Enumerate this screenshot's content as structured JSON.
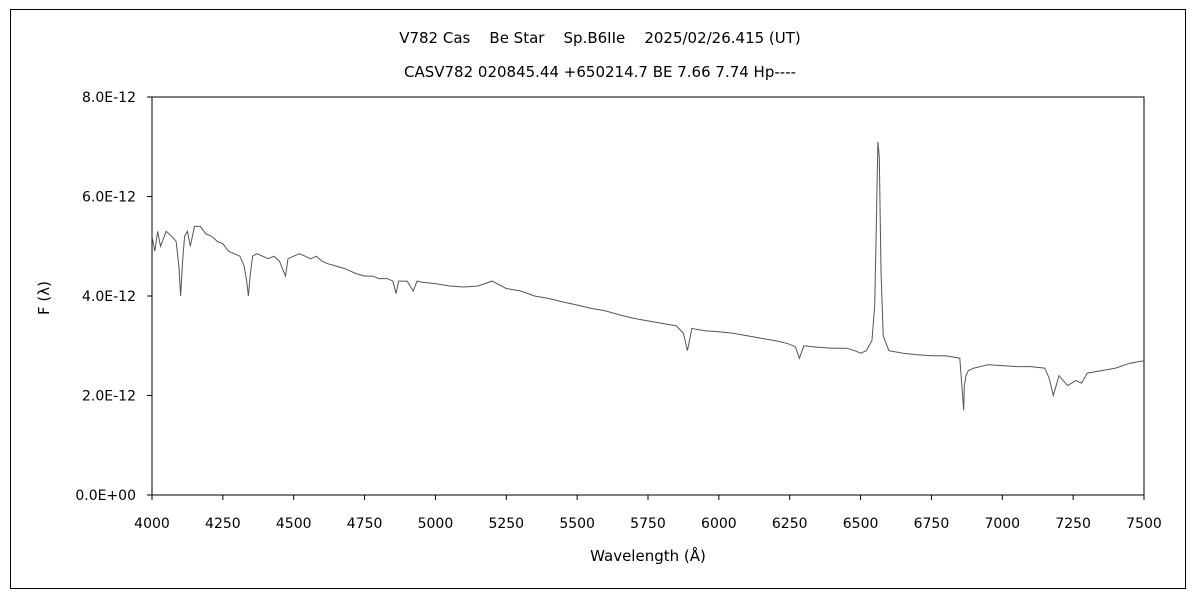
{
  "chart_data": {
    "type": "line",
    "title": "V782 Cas    Be Star    Sp.B6IIe    2025/02/26.415 (UT)",
    "subtitle": "CASV782 020845.44 +650214.7 BE 7.66 7.74 Hp----",
    "xlabel": "Wavelength (Å)",
    "ylabel": "F (λ)",
    "xlim": [
      4000,
      7500
    ],
    "ylim": [
      0,
      8e-12
    ],
    "x_ticks": [
      4000,
      4250,
      4500,
      4750,
      5000,
      5250,
      5500,
      5750,
      6000,
      6250,
      6500,
      6750,
      7000,
      7250,
      7500
    ],
    "x_tick_labels": [
      "4000",
      "4250",
      "4500",
      "4750",
      "5000",
      "5250",
      "5500",
      "5750",
      "6000",
      "6250",
      "6500",
      "6750",
      "7000",
      "7250",
      "7500"
    ],
    "y_ticks": [
      0,
      2e-12,
      4e-12,
      6e-12,
      8e-12
    ],
    "y_tick_labels": [
      "0.0E+00",
      "2.0E-12",
      "4.0E-12",
      "6.0E-12",
      "8.0E-12"
    ],
    "grid": false,
    "legend": "none",
    "line_color": "#555555",
    "series": [
      {
        "x": [
          4000,
          4010,
          4020,
          4030,
          4050,
          4070,
          4085,
          4095,
          4101,
          4108,
          4115,
          4125,
          4135,
          4150,
          4170,
          4190,
          4210,
          4230,
          4250,
          4270,
          4290,
          4310,
          4325,
          4334,
          4340,
          4346,
          4355,
          4370,
          4390,
          4410,
          4430,
          4450,
          4460,
          4471,
          4480,
          4500,
          4520,
          4540,
          4560,
          4580,
          4600,
          4620,
          4650,
          4680,
          4700,
          4720,
          4750,
          4780,
          4800,
          4830,
          4850,
          4861,
          4870,
          4900,
          4922,
          4935,
          4950,
          5000,
          5050,
          5100,
          5150,
          5200,
          5250,
          5300,
          5350,
          5400,
          5450,
          5500,
          5550,
          5600,
          5650,
          5700,
          5750,
          5800,
          5850,
          5875,
          5889,
          5896,
          5905,
          5920,
          5950,
          6000,
          6050,
          6100,
          6150,
          6200,
          6240,
          6270,
          6284,
          6300,
          6330,
          6350,
          6400,
          6450,
          6480,
          6500,
          6520,
          6540,
          6550,
          6556,
          6561,
          6566,
          6572,
          6580,
          6600,
          6650,
          6700,
          6750,
          6800,
          6850,
          6864,
          6866,
          6872,
          6880,
          6900,
          6950,
          7000,
          7050,
          7100,
          7150,
          7165,
          7180,
          7200,
          7230,
          7260,
          7280,
          7300,
          7350,
          7400,
          7450,
          7500
        ],
        "y": [
          5.2e-12,
          4.9e-12,
          5.3e-12,
          5e-12,
          5.3e-12,
          5.2e-12,
          5.1e-12,
          4.6e-12,
          4e-12,
          4.7e-12,
          5.2e-12,
          5.3e-12,
          5e-12,
          5.4e-12,
          5.4e-12,
          5.25e-12,
          5.2e-12,
          5.1e-12,
          5.05e-12,
          4.9e-12,
          4.85e-12,
          4.8e-12,
          4.6e-12,
          4.3e-12,
          4e-12,
          4.4e-12,
          4.8e-12,
          4.85e-12,
          4.8e-12,
          4.75e-12,
          4.8e-12,
          4.7e-12,
          4.55e-12,
          4.4e-12,
          4.75e-12,
          4.8e-12,
          4.85e-12,
          4.8e-12,
          4.75e-12,
          4.8e-12,
          4.7e-12,
          4.65e-12,
          4.6e-12,
          4.55e-12,
          4.5e-12,
          4.45e-12,
          4.4e-12,
          4.4e-12,
          4.35e-12,
          4.35e-12,
          4.3e-12,
          4.05e-12,
          4.3e-12,
          4.3e-12,
          4.1e-12,
          4.3e-12,
          4.28e-12,
          4.25e-12,
          4.2e-12,
          4.18e-12,
          4.2e-12,
          4.3e-12,
          4.15e-12,
          4.1e-12,
          4e-12,
          3.95e-12,
          3.88e-12,
          3.82e-12,
          3.75e-12,
          3.7e-12,
          3.62e-12,
          3.55e-12,
          3.5e-12,
          3.45e-12,
          3.4e-12,
          3.25e-12,
          2.9e-12,
          3.1e-12,
          3.35e-12,
          3.33e-12,
          3.3e-12,
          3.28e-12,
          3.25e-12,
          3.2e-12,
          3.15e-12,
          3.1e-12,
          3.05e-12,
          2.98e-12,
          2.75e-12,
          3e-12,
          2.98e-12,
          2.97e-12,
          2.95e-12,
          2.95e-12,
          2.9e-12,
          2.85e-12,
          2.9e-12,
          3.1e-12,
          3.8e-12,
          5.5e-12,
          7.1e-12,
          6.8e-12,
          4.5e-12,
          3.2e-12,
          2.9e-12,
          2.85e-12,
          2.82e-12,
          2.8e-12,
          2.8e-12,
          2.75e-12,
          1.7e-12,
          2.2e-12,
          2.4e-12,
          2.5e-12,
          2.55e-12,
          2.62e-12,
          2.6e-12,
          2.58e-12,
          2.58e-12,
          2.55e-12,
          2.35e-12,
          2e-12,
          2.4e-12,
          2.2e-12,
          2.3e-12,
          2.25e-12,
          2.45e-12,
          2.5e-12,
          2.55e-12,
          2.65e-12,
          2.7e-12
        ]
      }
    ]
  }
}
